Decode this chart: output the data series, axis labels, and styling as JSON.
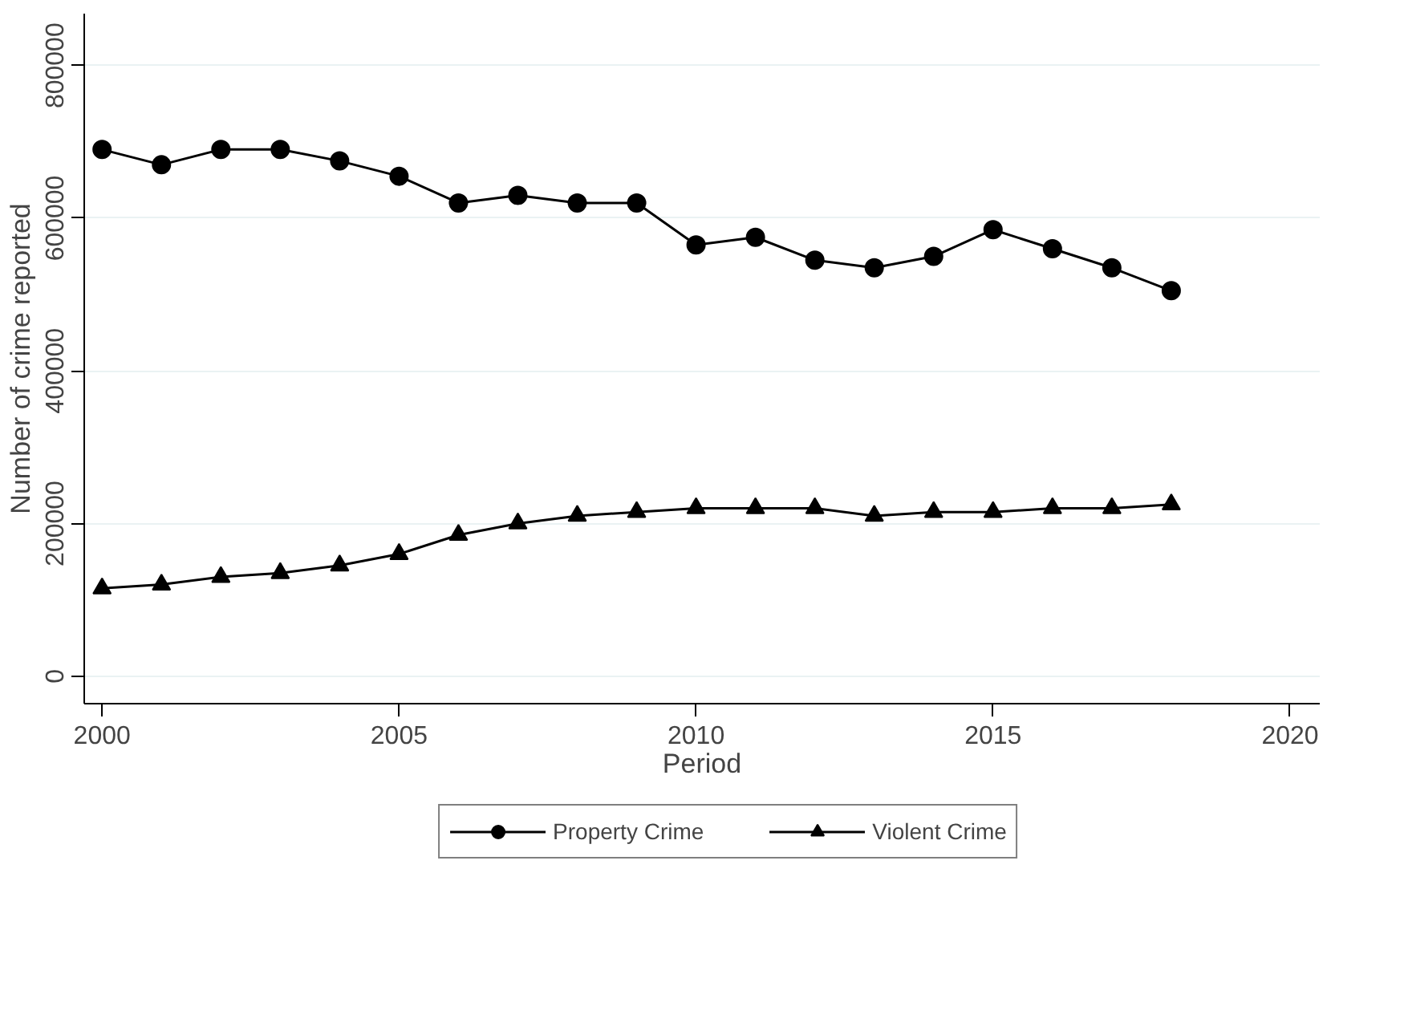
{
  "chart_data": {
    "type": "line",
    "xlabel": "Period",
    "ylabel": "Number of crime reported",
    "x": [
      2000,
      2001,
      2002,
      2003,
      2004,
      2005,
      2006,
      2007,
      2008,
      2009,
      2010,
      2011,
      2012,
      2013,
      2014,
      2015,
      2016,
      2017,
      2018
    ],
    "series": [
      {
        "name": "Property Crime",
        "color": "#000000",
        "marker": "circle",
        "values": [
          690000,
          670000,
          690000,
          690000,
          675000,
          655000,
          620000,
          630000,
          620000,
          620000,
          565000,
          575000,
          545000,
          535000,
          550000,
          585000,
          560000,
          535000,
          505000
        ]
      },
      {
        "name": "Violent Crime",
        "color": "#000000",
        "marker": "triangle",
        "values": [
          115000,
          120000,
          130000,
          135000,
          145000,
          160000,
          185000,
          200000,
          210000,
          215000,
          220000,
          220000,
          220000,
          210000,
          215000,
          215000,
          220000,
          220000,
          225000
        ]
      }
    ],
    "xlim": [
      1999.7,
      2020.5
    ],
    "ylim": [
      -36000,
      868000
    ],
    "xticks": [
      2000,
      2005,
      2010,
      2015,
      2020
    ],
    "yticks": [
      0,
      200000,
      400000,
      600000,
      800000
    ],
    "grid": "y",
    "legend": "bottom",
    "line_style": "solid"
  }
}
